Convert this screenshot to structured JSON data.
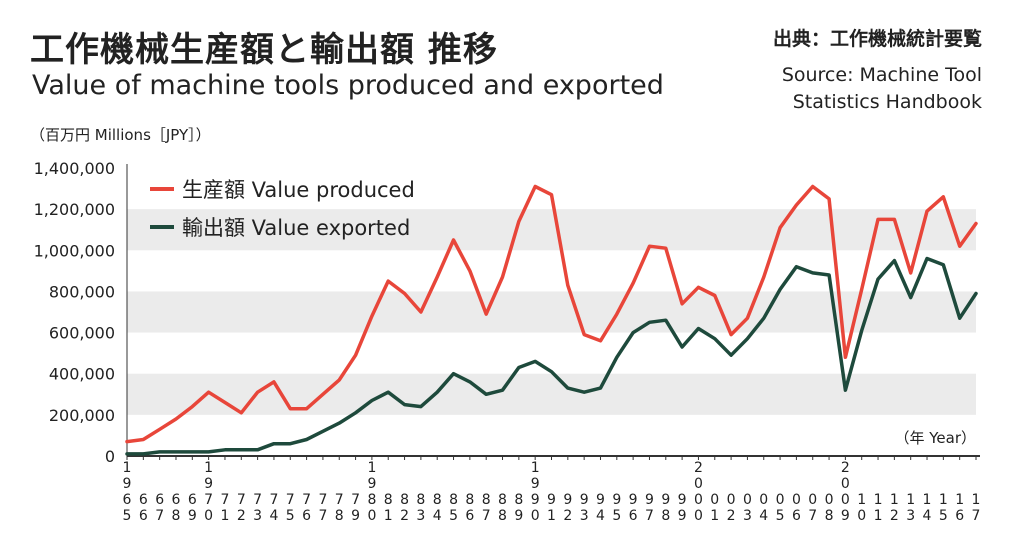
{
  "header": {
    "title_ja": "工作機械生産額と輸出額 推移",
    "title_en": "Value of machine tools produced and exported",
    "source_ja": "出典：工作機械統計要覧",
    "source_en_line1": "Source: Machine Tool",
    "source_en_line2": "Statistics Handbook",
    "unit_label": "（百万円 Millions［JPY］）"
  },
  "colors": {
    "produced": "#e8463a",
    "exported": "#1e4a3c",
    "band": "#ebebeb",
    "axis": "#333333"
  },
  "chart_data": {
    "type": "line",
    "xlabel": "（年 Year）",
    "ylim": [
      0,
      1400000
    ],
    "yticks": [
      0,
      200000,
      400000,
      600000,
      800000,
      1000000,
      1200000,
      1400000
    ],
    "ytick_labels": [
      "0",
      "200,000",
      "400,000",
      "600,000",
      "800,000",
      "1,000,000",
      "1,200,000",
      "1,400,000"
    ],
    "x": [
      1965,
      1966,
      1967,
      1968,
      1969,
      1970,
      1971,
      1972,
      1973,
      1974,
      1975,
      1976,
      1977,
      1978,
      1979,
      1980,
      1981,
      1982,
      1983,
      1984,
      1985,
      1986,
      1987,
      1988,
      1989,
      1990,
      1991,
      1992,
      1993,
      1994,
      1995,
      1996,
      1997,
      1998,
      1999,
      2000,
      2001,
      2002,
      2003,
      2004,
      2005,
      2006,
      2007,
      2008,
      2009,
      2010,
      2011,
      2012,
      2013,
      2014,
      2015,
      2016,
      2017
    ],
    "x_tick_labels": [
      "1\n9\n6\n5",
      "6\n6",
      "6\n7",
      "6\n8",
      "6\n9",
      "1\n9\n7\n0",
      "7\n1",
      "7\n2",
      "7\n3",
      "7\n4",
      "7\n5",
      "7\n6",
      "7\n7",
      "7\n8",
      "7\n9",
      "1\n9\n8\n0",
      "8\n1",
      "8\n2",
      "8\n3",
      "8\n4",
      "8\n5",
      "8\n6",
      "8\n7",
      "8\n8",
      "8\n9",
      "1\n9\n9\n0",
      "9\n1",
      "9\n2",
      "9\n3",
      "9\n4",
      "9\n5",
      "9\n6",
      "9\n7",
      "9\n8",
      "9\n9",
      "2\n0\n0\n0",
      "0\n1",
      "0\n2",
      "0\n3",
      "0\n4",
      "0\n5",
      "0\n6",
      "0\n7",
      "0\n8",
      "2\n0\n0\n9",
      "1\n0",
      "1\n1",
      "1\n2",
      "1\n3",
      "1\n4",
      "1\n5",
      "1\n6",
      "1\n7"
    ],
    "series": [
      {
        "name": "生産額 Value produced",
        "values": [
          70000,
          80000,
          130000,
          180000,
          240000,
          310000,
          260000,
          210000,
          310000,
          360000,
          230000,
          230000,
          300000,
          370000,
          490000,
          680000,
          850000,
          790000,
          700000,
          870000,
          1050000,
          900000,
          690000,
          870000,
          1140000,
          1310000,
          1270000,
          830000,
          590000,
          560000,
          690000,
          840000,
          1020000,
          1010000,
          740000,
          820000,
          780000,
          590000,
          670000,
          870000,
          1110000,
          1220000,
          1310000,
          1250000,
          480000,
          810000,
          1150000,
          1150000,
          890000,
          1190000,
          1260000,
          1020000,
          1130000
        ]
      },
      {
        "name": "輸出額 Value exported",
        "values": [
          10000,
          10000,
          20000,
          20000,
          20000,
          20000,
          30000,
          30000,
          30000,
          60000,
          60000,
          80000,
          120000,
          160000,
          210000,
          270000,
          310000,
          250000,
          240000,
          310000,
          400000,
          360000,
          300000,
          320000,
          430000,
          460000,
          410000,
          330000,
          310000,
          330000,
          480000,
          600000,
          650000,
          660000,
          530000,
          620000,
          570000,
          490000,
          570000,
          670000,
          810000,
          920000,
          890000,
          880000,
          320000,
          610000,
          860000,
          950000,
          770000,
          960000,
          930000,
          670000,
          790000
        ]
      }
    ]
  }
}
